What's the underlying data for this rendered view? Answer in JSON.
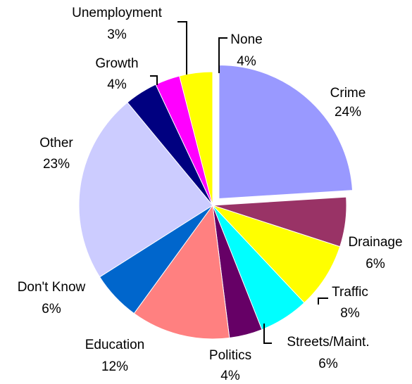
{
  "chart_data": {
    "type": "pie",
    "title": "",
    "start_angle_deg": 0,
    "direction": "clockwise",
    "slices": [
      {
        "label": "Crime",
        "value": 24,
        "pct_label": "24%",
        "color": "#9999FF",
        "exploded": true
      },
      {
        "label": "Drainage",
        "value": 6,
        "pct_label": "6%",
        "color": "#993366"
      },
      {
        "label": "Traffic",
        "value": 8,
        "pct_label": "8%",
        "color": "#FFFF00"
      },
      {
        "label": "Streets/Maint.",
        "value": 6,
        "pct_label": "6%",
        "color": "#00FFFF"
      },
      {
        "label": "Politics",
        "value": 4,
        "pct_label": "4%",
        "color": "#660066"
      },
      {
        "label": "Education",
        "value": 12,
        "pct_label": "12%",
        "color": "#FF8080"
      },
      {
        "label": "Don't Know",
        "value": 6,
        "pct_label": "6%",
        "color": "#0066CC"
      },
      {
        "label": "Other",
        "value": 23,
        "pct_label": "23%",
        "color": "#CCCCFF"
      },
      {
        "label": "Growth",
        "value": 4,
        "pct_label": "4%",
        "color": "#000080"
      },
      {
        "label": "Unemployment",
        "value": 3,
        "pct_label": "3%",
        "color": "#FF00FF"
      },
      {
        "label": "None",
        "value": 4,
        "pct_label": "4%",
        "color": "#FFFF00"
      }
    ]
  }
}
